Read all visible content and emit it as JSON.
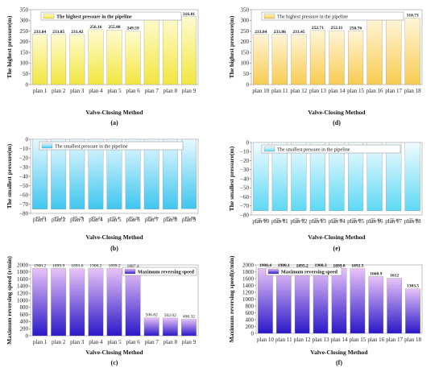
{
  "chart_data": [
    {
      "id": "a",
      "panel_label": "(a)",
      "type": "bar",
      "categories": [
        "plan 1",
        "plan 2",
        "plan 3",
        "plan 4",
        "plan 5",
        "plan 6",
        "plan 7",
        "plan 8",
        "plan 9"
      ],
      "series": [
        {
          "name": "The highest pressure in the pipeline",
          "values": [
            233.84,
            233.85,
            233.42,
            256.16,
            255.08,
            249.59,
            317.27,
            317.24,
            316.81
          ]
        }
      ],
      "value_labels": [
        "233.84",
        "233.85",
        "233.42",
        "256.16",
        "255.08",
        "249.59",
        "317.27",
        "317.24",
        "316.81"
      ],
      "xlabel": "Valve-Closing Method",
      "ylabel": "The highest pressure(m)",
      "ylim": [
        0,
        350
      ],
      "yticks": [
        0,
        50,
        100,
        150,
        200,
        250,
        300,
        350
      ],
      "colors": [
        "#fffbd0",
        "#f2e640"
      ],
      "legend_position": "top"
    },
    {
      "id": "d",
      "panel_label": "(d)",
      "type": "bar",
      "categories": [
        "plan 10",
        "plan 11",
        "plan 12",
        "plan 13",
        "plan 14",
        "plan 15",
        "plan 16",
        "plan 17",
        "plan 18"
      ],
      "series": [
        {
          "name": "The highest pressure in the pipeline",
          "values": [
            233.84,
            233.86,
            233.45,
            252.71,
            252.11,
            250.76,
            311.87,
            311.02,
            310.73
          ]
        }
      ],
      "value_labels": [
        "233.84",
        "233.86",
        "233.45",
        "252.71",
        "252.11",
        "250.76",
        "311.87",
        "311.02",
        "310.73"
      ],
      "xlabel": "Valve-Closing Method",
      "ylabel": "The highest pressure(m)",
      "ylim": [
        0,
        350
      ],
      "yticks": [
        0,
        50,
        100,
        150,
        200,
        250,
        300,
        350
      ],
      "colors": [
        "#fff5d8",
        "#f8cc52"
      ],
      "legend_position": "top"
    },
    {
      "id": "b",
      "panel_label": "(b)",
      "type": "bar",
      "categories": [
        "plan 1",
        "plan 2",
        "plan 3",
        "plan 4",
        "plan 5",
        "plan 6",
        "plan 7",
        "plan 8",
        "plan 9"
      ],
      "series": [
        {
          "name": "The smallest pressure in the pipeline",
          "values": [
            -75.41,
            -75.41,
            -75.29,
            -75.41,
            -75.4,
            -75.28,
            -75.41,
            -75.38,
            -75.09
          ]
        }
      ],
      "value_labels": [
        "−75.41",
        "−75.41",
        "−75.29",
        "−75.41",
        "−75.4",
        "−75.28",
        "−75.41",
        "−75.38",
        "−75.09"
      ],
      "xlabel": "Valve-Closing Method",
      "ylabel": "The smallest pressure(m)",
      "ylim": [
        -80,
        0
      ],
      "yticks": [
        0,
        -10,
        -20,
        -30,
        -40,
        -50,
        -60,
        -70,
        -80
      ],
      "colors": [
        "#e6f8ff",
        "#3fc6ef"
      ],
      "legend_position": "top"
    },
    {
      "id": "e",
      "panel_label": "(e)",
      "type": "bar",
      "categories": [
        "plan 10",
        "plan 11",
        "plan 12",
        "plan 13",
        "plan 14",
        "plan 15",
        "plan 16",
        "plan 17",
        "plan 18"
      ],
      "series": [
        {
          "name": "The smallest pressure in the pipeline",
          "values": [
            -75.42,
            -75.41,
            -75.41,
            -75.42,
            -75.41,
            -75.41,
            -75.42,
            -75.41,
            -75.41
          ]
        }
      ],
      "value_labels": [
        "−75.42",
        "−75.41",
        "−75.41",
        "−75.42",
        "−75.41",
        "−75.41",
        "−75.42",
        "−75.41",
        "−75.41"
      ],
      "xlabel": "Valve-Closing Method",
      "ylabel": "The smallest pressure(m)",
      "ylim": [
        -80,
        0
      ],
      "yticks": [
        0,
        -10,
        -20,
        -30,
        -40,
        -50,
        -60,
        -70,
        -80
      ],
      "colors": [
        "#f0fcff",
        "#5ed8f4"
      ],
      "legend_position": "top"
    },
    {
      "id": "c",
      "panel_label": "(c)",
      "type": "bar",
      "categories": [
        "plan 1",
        "plan 2",
        "plan 3",
        "plan 4",
        "plan 5",
        "plan 6",
        "plan 7",
        "plan 8",
        "plan 9"
      ],
      "series": [
        {
          "name": "Maximum reversing speed",
          "values": [
            1900.2,
            1899.9,
            1893.6,
            1900.2,
            1899.2,
            1887.4,
            506.82,
            502.02,
            466.32
          ]
        }
      ],
      "value_labels": [
        "1900.2",
        "1899.9",
        "1893.6",
        "1900.2",
        "1899.2",
        "1887.4",
        "506.82",
        "502.02",
        "466.32"
      ],
      "xlabel": "Valve-Closing Method",
      "ylabel": "Maximum reversing speed (r/min)",
      "ylim": [
        0,
        2000
      ],
      "yticks": [
        0,
        200,
        400,
        600,
        800,
        1000,
        1200,
        1400,
        1600,
        1800,
        2000
      ],
      "colors": [
        "#e8c2f8",
        "#2a18c8"
      ],
      "legend_position": "top-right"
    },
    {
      "id": "f",
      "panel_label": "(f)",
      "type": "bar",
      "categories": [
        "plan 10",
        "plan 11",
        "plan 12",
        "plan 13",
        "plan 14",
        "plan 15",
        "plan 16",
        "plan 17",
        "plan 18"
      ],
      "series": [
        {
          "name": "Maximum reversing speed",
          "values": [
            1900.4,
            1900.1,
            1895.2,
            1900.3,
            1899.8,
            1892.5,
            1660.9,
            1612,
            1303.5
          ]
        }
      ],
      "value_labels": [
        "1900.4",
        "1900.1",
        "1895.2",
        "1900.3",
        "1899.8",
        "1892.5",
        "1660.9",
        "1612",
        "1303.5"
      ],
      "xlabel": "Valve-Closing Method",
      "ylabel": "Maximum reversing speed(r/min)",
      "ylim": [
        0,
        2000
      ],
      "yticks": [
        0,
        200,
        400,
        600,
        800,
        1000,
        1200,
        1400,
        1600,
        1800,
        2000
      ],
      "colors": [
        "#e8c2f8",
        "#2a18c8"
      ],
      "legend_position": "top"
    }
  ]
}
